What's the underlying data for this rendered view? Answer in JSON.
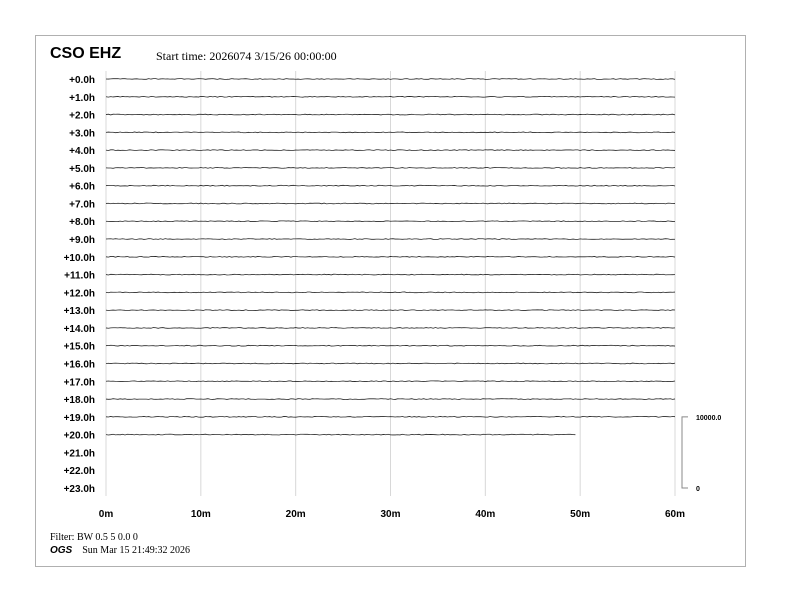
{
  "header": {
    "station": "CSO EHZ",
    "start_time": "Start time: 2026074  3/15/26 00:00:00"
  },
  "footer": {
    "filter": "Filter: BW 0.5 5 0.0 0",
    "org": "OGS",
    "generated": "Sun Mar 15 21:49:32 2026"
  },
  "chart_data": {
    "type": "line",
    "title": "CSO EHZ",
    "row_labels": [
      "+0.0h",
      "+1.0h",
      "+2.0h",
      "+3.0h",
      "+4.0h",
      "+5.0h",
      "+6.0h",
      "+7.0h",
      "+8.0h",
      "+9.0h",
      "+10.0h",
      "+11.0h",
      "+12.0h",
      "+13.0h",
      "+14.0h",
      "+15.0h",
      "+16.0h",
      "+17.0h",
      "+18.0h",
      "+19.0h",
      "+20.0h",
      "+21.0h",
      "+22.0h",
      "+23.0h"
    ],
    "x_ticks": [
      "0m",
      "10m",
      "20m",
      "30m",
      "40m",
      "50m",
      "60m"
    ],
    "xlim": [
      0,
      60
    ],
    "grid": true,
    "trace_end_minutes": [
      60,
      60,
      60,
      60,
      60,
      60,
      60,
      60,
      60,
      60,
      60,
      60,
      60,
      60,
      60,
      60,
      60,
      60,
      60,
      60,
      49.5,
      null,
      null,
      null
    ],
    "scale": {
      "max_label": "10000.0",
      "min_label": "0"
    },
    "trace_color": "#000000"
  }
}
